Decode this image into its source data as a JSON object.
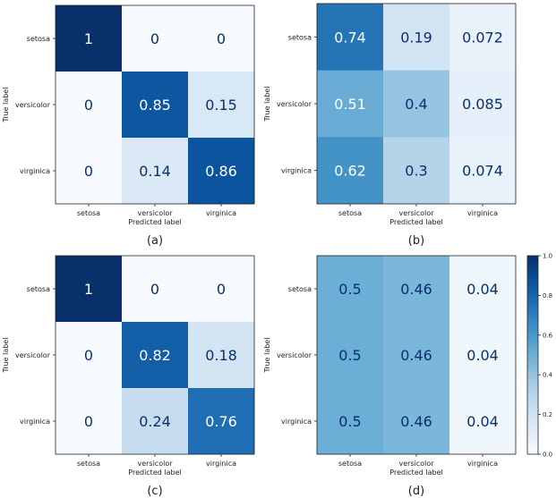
{
  "chart_data": [
    {
      "type": "heatmap",
      "caption": "(a)",
      "classes": [
        "setosa",
        "versicolor",
        "virginica"
      ],
      "values": [
        [
          1,
          0,
          0
        ],
        [
          0,
          0.85,
          0.15
        ],
        [
          0,
          0.14,
          0.86
        ]
      ],
      "labels": [
        [
          "1",
          "0",
          "0"
        ],
        [
          "0",
          "0.85",
          "0.15"
        ],
        [
          "0",
          "0.14",
          "0.86"
        ]
      ],
      "xlabel": "Predicted label",
      "ylabel": "True label",
      "colormap": "Blues",
      "vmin": 0,
      "vmax": 1
    },
    {
      "type": "heatmap",
      "caption": "(b)",
      "classes": [
        "setosa",
        "versicolor",
        "virginica"
      ],
      "values": [
        [
          0.74,
          0.19,
          0.072
        ],
        [
          0.51,
          0.4,
          0.085
        ],
        [
          0.62,
          0.3,
          0.074
        ]
      ],
      "labels": [
        [
          "0.74",
          "0.19",
          "0.072"
        ],
        [
          "0.51",
          "0.4",
          "0.085"
        ],
        [
          "0.62",
          "0.3",
          "0.074"
        ]
      ],
      "xlabel": "Predicted label",
      "ylabel": "True label",
      "colormap": "Blues",
      "vmin": 0,
      "vmax": 1
    },
    {
      "type": "heatmap",
      "caption": "(c)",
      "classes": [
        "setosa",
        "versicolor",
        "virginica"
      ],
      "values": [
        [
          1,
          0,
          0
        ],
        [
          0,
          0.82,
          0.18
        ],
        [
          0,
          0.24,
          0.76
        ]
      ],
      "labels": [
        [
          "1",
          "0",
          "0"
        ],
        [
          "0",
          "0.82",
          "0.18"
        ],
        [
          "0",
          "0.24",
          "0.76"
        ]
      ],
      "xlabel": "Predicted label",
      "ylabel": "True label",
      "colormap": "Blues",
      "vmin": 0,
      "vmax": 1
    },
    {
      "type": "heatmap",
      "caption": "(d)",
      "classes": [
        "setosa",
        "versicolor",
        "virginica"
      ],
      "values": [
        [
          0.5,
          0.46,
          0.04
        ],
        [
          0.5,
          0.46,
          0.04
        ],
        [
          0.5,
          0.46,
          0.04
        ]
      ],
      "labels": [
        [
          "0.5",
          "0.46",
          "0.04"
        ],
        [
          "0.5",
          "0.46",
          "0.04"
        ],
        [
          "0.5",
          "0.46",
          "0.04"
        ]
      ],
      "xlabel": "Predicted label",
      "ylabel": "True label",
      "colormap": "Blues",
      "vmin": 0,
      "vmax": 1
    }
  ],
  "colorbar": {
    "ticks": [
      "0.0",
      "0.2",
      "0.4",
      "0.6",
      "0.8",
      "1.0"
    ],
    "tick_values": [
      0,
      0.2,
      0.4,
      0.6,
      0.8,
      1.0
    ],
    "vmin": 0,
    "vmax": 1
  },
  "colors": {
    "blues_stops": [
      "#f7fbff",
      "#deebf7",
      "#c6dbef",
      "#9ecae1",
      "#6baed6",
      "#4292c6",
      "#2171b5",
      "#08519c",
      "#08306b"
    ],
    "text_dark": "#08306b",
    "text_light": "#ffffff"
  }
}
